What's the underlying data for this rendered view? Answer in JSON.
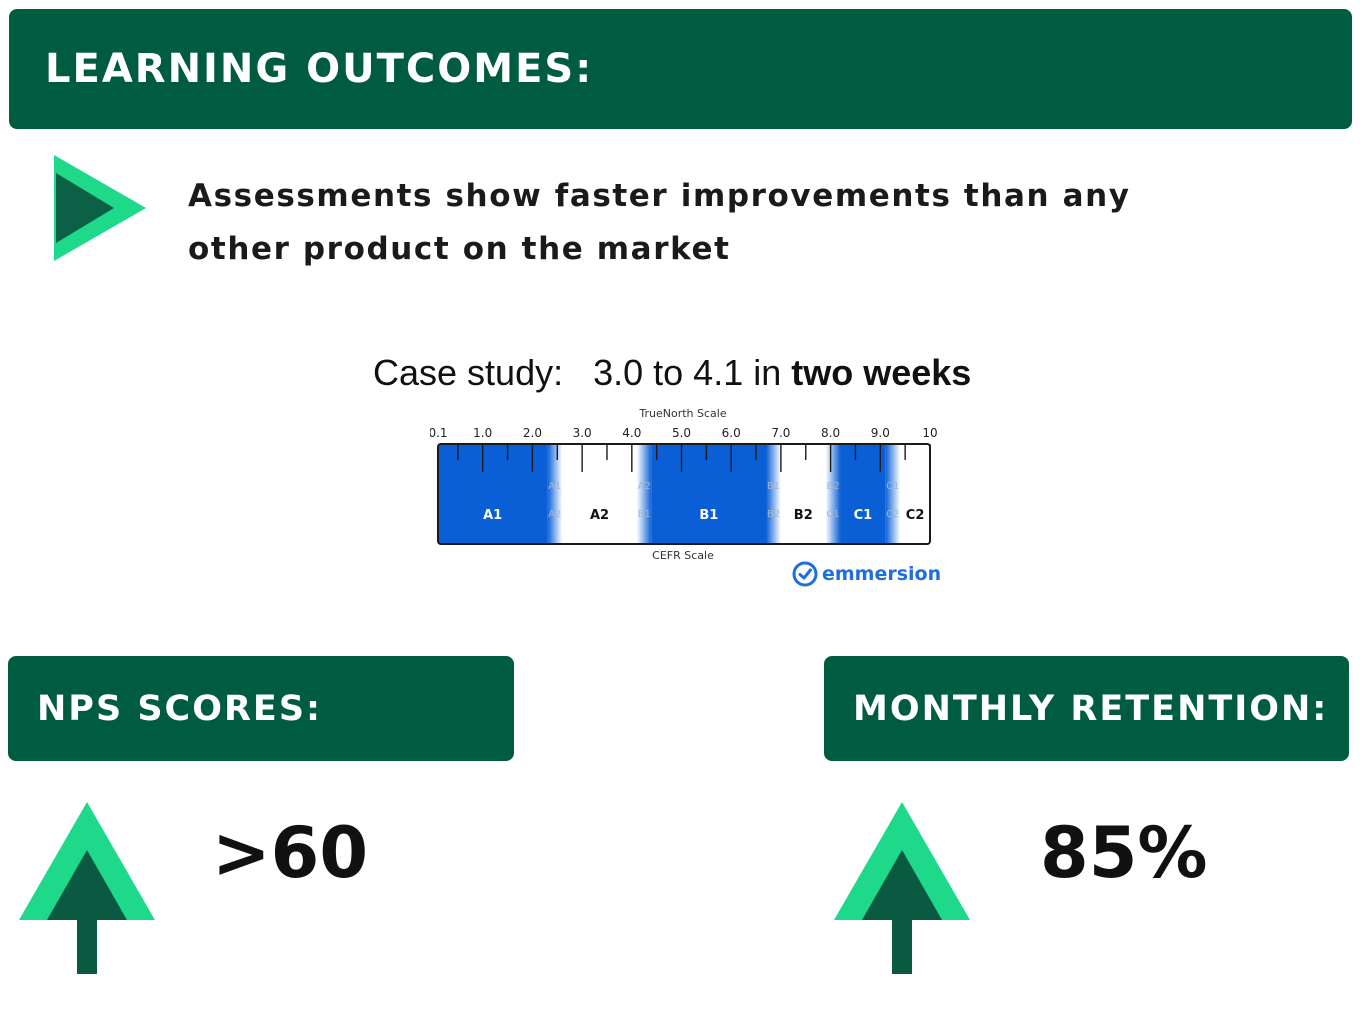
{
  "learning_outcomes": {
    "heading": "LEARNING OUTCOMES:",
    "claim_line1": "Assessments show faster improvements than any",
    "claim_line2": "other product on the market"
  },
  "case_study": {
    "label": "Case study:",
    "text": "3.0 to 4.1 in",
    "emphasis": "two weeks"
  },
  "scale_graphic": {
    "top_label": "TrueNorth Scale",
    "bottom_label": "CEFR Scale",
    "ticks": [
      "0.1",
      "1.0",
      "2.0",
      "3.0",
      "4.0",
      "5.0",
      "6.0",
      "7.0",
      "8.0",
      "9.0",
      "10"
    ],
    "bands": [
      {
        "label": "A1",
        "from": 0.1,
        "to": 2.3,
        "style": "blue"
      },
      {
        "label": [
          "A1",
          "-",
          "A2"
        ],
        "from": 2.3,
        "to": 2.6,
        "style": "blend"
      },
      {
        "label": "A2",
        "from": 2.6,
        "to": 4.1,
        "style": "white"
      },
      {
        "label": [
          "A2",
          "-",
          "B1"
        ],
        "from": 4.1,
        "to": 4.4,
        "style": "blend"
      },
      {
        "label": "B1",
        "from": 4.4,
        "to": 6.7,
        "style": "blue"
      },
      {
        "label": [
          "B1",
          "-",
          "B2"
        ],
        "from": 6.7,
        "to": 7.0,
        "style": "blend"
      },
      {
        "label": "B2",
        "from": 7.0,
        "to": 7.9,
        "style": "white"
      },
      {
        "label": [
          "B2",
          "-",
          "C1"
        ],
        "from": 7.9,
        "to": 8.2,
        "style": "blend"
      },
      {
        "label": "C1",
        "from": 8.2,
        "to": 9.1,
        "style": "blue"
      },
      {
        "label": [
          "C1",
          "-",
          "C2"
        ],
        "from": 9.1,
        "to": 9.4,
        "style": "blend"
      },
      {
        "label": "C2",
        "from": 9.4,
        "to": 10,
        "style": "white"
      }
    ],
    "brand": "emmersion",
    "colors": {
      "blue": "#0b5fd6",
      "brand": "#1d6fe0"
    }
  },
  "nps": {
    "heading": "NPS SCORES:",
    "value": ">60"
  },
  "retention": {
    "heading": "MONTHLY RETENTION:",
    "value": "85%"
  },
  "colors": {
    "banner": "#005c40",
    "accent": "#1ed98a",
    "dark_green": "#0a5a41"
  },
  "icons": [
    "play-arrow-icon",
    "up-arrow-icon",
    "emmersion-logo-icon"
  ]
}
